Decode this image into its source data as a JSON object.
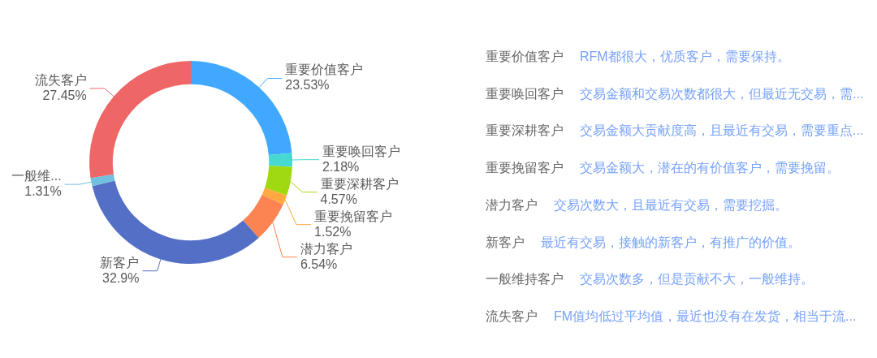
{
  "chart_data": [
    {
      "type": "donut",
      "categories": [
        "重要价值客户",
        "重要唤回客户",
        "重要深耕客户",
        "重要挽留客户",
        "潜力客户",
        "新客户",
        "一般维...",
        "流失客户"
      ],
      "values": [
        23.53,
        2.18,
        4.57,
        1.52,
        6.54,
        32.9,
        1.31,
        27.45
      ],
      "colors": [
        "#40a9ff",
        "#48d8d2",
        "#a0d911",
        "#ffa940",
        "#fc8452",
        "#5470c6",
        "#73c0de",
        "#ee6666"
      ],
      "value_labels": [
        "23.53%",
        "2.18%",
        "4.57%",
        "1.52%",
        "6.54%",
        "32.9%",
        "1.31%",
        "27.45%"
      ]
    },
    {
      "type": "other",
      "annotations": [
        "重要价值客户",
        "RFM都很大，优质客户，需要保持。",
        "重要唤回客户",
        "交易金额和交易次数都很大，但最近无交易，需...",
        "重要深耕客户",
        "交易金额大贡献度高，且最近有交易，需要重点...",
        "重要挽留客户",
        "交易金额大，潜在的有价值客户，需要挽留。",
        "潜力客户",
        "交易次数大，且最近有交易，需要挖掘。",
        "新客户",
        "最近有交易，接触的新客户，有推广的价值。",
        "一般维持客户",
        "交易次数多，但是贡献不大，一般维持。",
        "流失客户",
        "FM值均低过平均值，最近也没有在发货，相当于流..."
      ]
    }
  ]
}
